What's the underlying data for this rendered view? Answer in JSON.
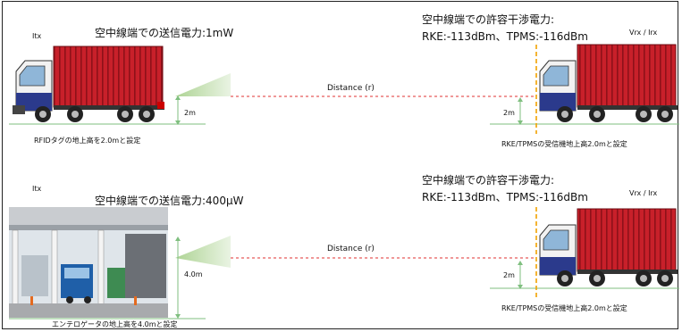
{
  "top": {
    "itx_label": "Itx",
    "tx_power_title": "空中線端での送信電力:1mW",
    "rx_title_line1": "空中線端での許容干渉電力:",
    "rx_title_line2": "RKE:-113dBm、TPMS:-116dBm",
    "vrx_label": "Vrx / Irx",
    "distance_label": "Distance (r)",
    "left_height": "2m",
    "right_height": "2m",
    "left_caption": "RFIDタグの地上高を2.0mと設定",
    "right_caption": "RKE/TPMSの受信機地上高2.0mと設定"
  },
  "bottom": {
    "itx_label": "Itx",
    "tx_power_title": "空中線端での送信電力:400μW",
    "rx_title_line1": "空中線端での許容干渉電力:",
    "rx_title_line2": "RKE:-113dBm、TPMS:-116dBm",
    "vrx_label": "Vrx / Irx",
    "distance_label": "Distance (r)",
    "left_height": "4.0m",
    "right_height": "2m",
    "left_caption": "エンテロゲータの地上高を4.0mと設定",
    "right_caption": "RKE/TPMSの受信機地上高2.0mと設定"
  },
  "colors": {
    "container_red": "#c8202a",
    "cab_blue": "#2b3a8c",
    "beam_green": "#a9d18e",
    "dashed_red": "#e03030",
    "dashed_orange": "#f2a100",
    "height_arrow": "#7fbf7f"
  }
}
